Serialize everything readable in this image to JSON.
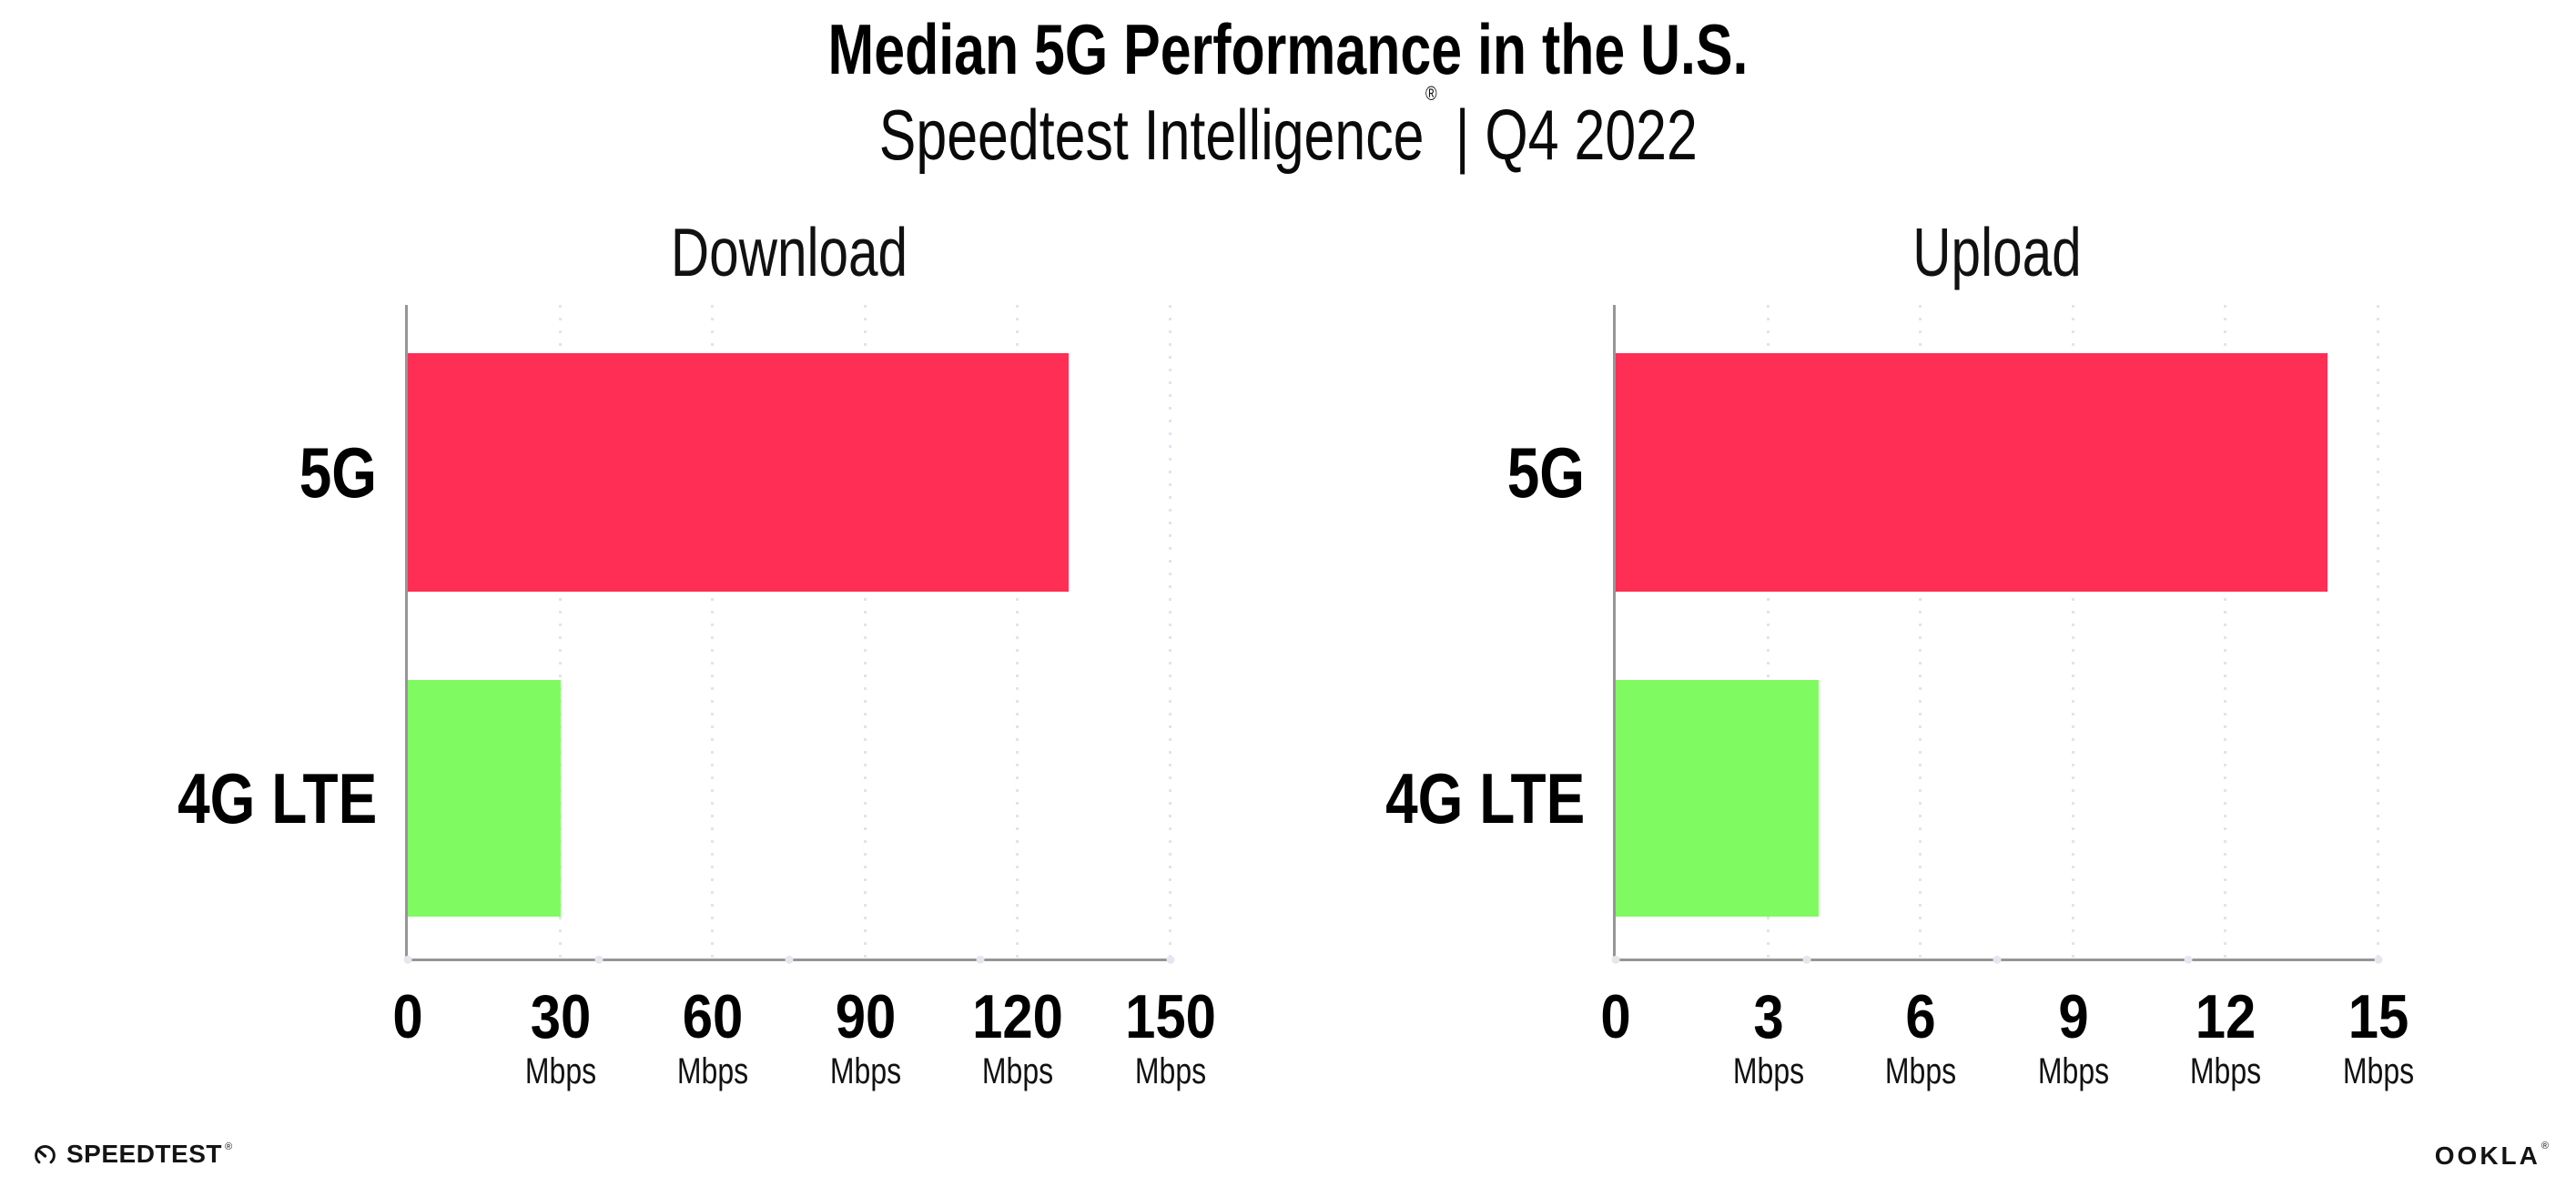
{
  "header": {
    "title": "Median 5G Performance in the U.S.",
    "subtitle": {
      "brand": "Speedtest Intelligence",
      "registered": "®",
      "separator": " | ",
      "period": "Q4 2022"
    }
  },
  "chart_data": [
    {
      "type": "bar",
      "orientation": "horizontal",
      "title": "Download",
      "categories": [
        "5G",
        "4G LTE"
      ],
      "values": [
        130,
        30
      ],
      "unit": "Mbps",
      "xlim": [
        0,
        150
      ],
      "xticks": [
        0,
        30,
        60,
        90,
        120,
        150
      ],
      "bar_colors": [
        "#ff2e55",
        "#7ffb61"
      ],
      "grid": "dotted-vertical",
      "legend": "none"
    },
    {
      "type": "bar",
      "orientation": "horizontal",
      "title": "Upload",
      "categories": [
        "5G",
        "4G LTE"
      ],
      "values": [
        14,
        4
      ],
      "unit": "Mbps",
      "xlim": [
        0,
        15
      ],
      "xticks": [
        0,
        3,
        6,
        9,
        12,
        15
      ],
      "bar_colors": [
        "#ff2e55",
        "#7ffb61"
      ],
      "grid": "dotted-vertical",
      "legend": "none"
    }
  ],
  "palette": {
    "bar_5g": "#ff2e55",
    "bar_4g_lte": "#7ffb61",
    "axis_line": "#969696",
    "gridline": "#e3e3ee",
    "text": "#000000"
  },
  "footer": {
    "speedtest": "SPEEDTEST",
    "speedtest_mark": "®",
    "ookla": "OOKLA",
    "ookla_mark": "®"
  }
}
